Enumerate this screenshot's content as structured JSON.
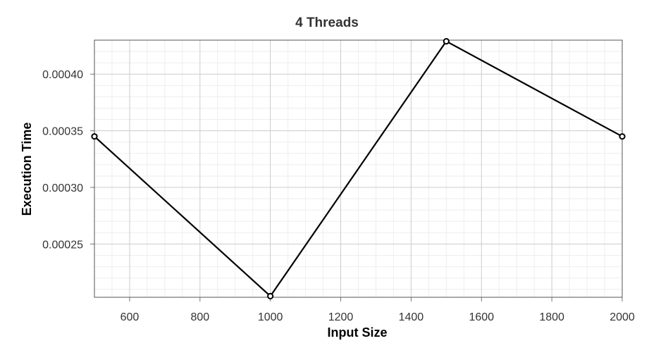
{
  "chart_data": {
    "type": "line",
    "title": "4 Threads",
    "xlabel": "Input Size",
    "ylabel": "Execution Time",
    "xlim": [
      500,
      2000
    ],
    "ylim": [
      0.000203,
      0.00043
    ],
    "xticks": [
      600,
      800,
      1000,
      1200,
      1400,
      1600,
      1800,
      2000
    ],
    "xtick_labels": [
      "600",
      "800",
      "1000",
      "1200",
      "1400",
      "1600",
      "1800",
      "2000"
    ],
    "yticks": [
      0.00025,
      0.0003,
      0.00035,
      0.0004
    ],
    "ytick_labels": [
      "0.00025",
      "0.00030",
      "0.00035",
      "0.00040"
    ],
    "grid": true,
    "series": [
      {
        "x": [
          500,
          1000,
          1500,
          2000
        ],
        "y": [
          0.000345,
          0.000204,
          0.000429,
          0.000345
        ],
        "color": "#000000"
      }
    ]
  }
}
